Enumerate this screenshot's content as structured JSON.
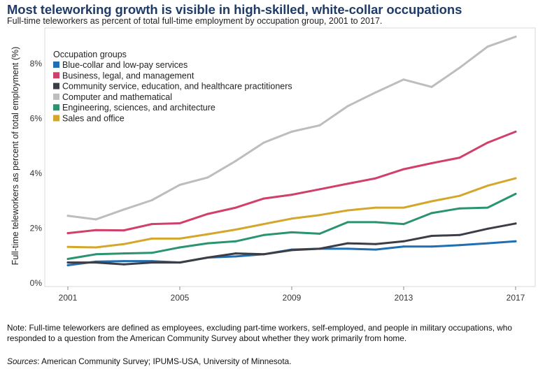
{
  "title": "Most teleworking growth is visible in high-skilled, white-collar occupations",
  "subtitle": "Full-time teleworkers as percent of total full-time employment by occupation group, 2001 to 2017.",
  "note": "Note: Full-time teleworkers are defined as employees, excluding part-time workers, self-employed, and people in military occupations, who responded to a question from the American Community Survey about whether they work primarily from home.",
  "sources_label": "Sources",
  "sources_text": ": American Community Survey; IPUMS-USA, University of Minnesota.",
  "chart_data": {
    "type": "line",
    "title": "Most teleworking growth is visible in high-skilled, white-collar occupations",
    "subtitle": "Full-time teleworkers as percent of total full-time employment by occupation group, 2001 to 2017.",
    "xlabel": "",
    "ylabel": "Full-time teleworkers as percent of total employment (%)",
    "x": [
      2001,
      2002,
      2003,
      2004,
      2005,
      2006,
      2007,
      2008,
      2009,
      2010,
      2011,
      2012,
      2013,
      2014,
      2015,
      2016,
      2017
    ],
    "x_ticks": [
      2001,
      2005,
      2009,
      2013,
      2017
    ],
    "y_ticks": [
      0,
      2,
      4,
      6,
      8
    ],
    "y_tick_labels": [
      "0%",
      "2%",
      "4%",
      "6%",
      "8%"
    ],
    "xlim": [
      2001,
      2017
    ],
    "ylim": [
      0,
      9.3
    ],
    "grid": false,
    "legend_title": "Occupation groups",
    "legend_position": "top-left",
    "series": [
      {
        "name": "Blue-collar and low-pay services",
        "color": "#1f6fb2",
        "values": [
          0.65,
          0.78,
          0.8,
          0.8,
          0.75,
          0.93,
          0.97,
          1.05,
          1.22,
          1.25,
          1.25,
          1.22,
          1.33,
          1.33,
          1.38,
          1.45,
          1.52
        ]
      },
      {
        "name": "Business, legal, and management",
        "color": "#d0406a",
        "values": [
          1.82,
          1.93,
          1.92,
          2.15,
          2.18,
          2.52,
          2.75,
          3.08,
          3.22,
          3.42,
          3.62,
          3.82,
          4.15,
          4.37,
          4.57,
          5.12,
          5.52
        ]
      },
      {
        "name": "Community service, education, and healthcare practitioners",
        "color": "#3d3d46",
        "values": [
          0.75,
          0.75,
          0.68,
          0.75,
          0.75,
          0.93,
          1.08,
          1.05,
          1.2,
          1.25,
          1.45,
          1.42,
          1.52,
          1.72,
          1.75,
          1.98,
          2.17
        ]
      },
      {
        "name": "Computer and mathematical",
        "color": "#bdbdbd",
        "values": [
          2.45,
          2.32,
          2.68,
          3.02,
          3.58,
          3.85,
          4.45,
          5.12,
          5.52,
          5.75,
          6.45,
          6.95,
          7.42,
          7.15,
          7.85,
          8.62,
          8.98
        ]
      },
      {
        "name": "Engineering, sciences, and architecture",
        "color": "#2a9470",
        "values": [
          0.88,
          1.05,
          1.08,
          1.1,
          1.3,
          1.45,
          1.52,
          1.75,
          1.85,
          1.8,
          2.22,
          2.22,
          2.15,
          2.55,
          2.72,
          2.75,
          3.25
        ]
      },
      {
        "name": "Sales and office",
        "color": "#d4a72c",
        "values": [
          1.32,
          1.3,
          1.42,
          1.62,
          1.62,
          1.78,
          1.95,
          2.15,
          2.35,
          2.48,
          2.65,
          2.75,
          2.75,
          2.98,
          3.18,
          3.55,
          3.82
        ]
      }
    ]
  }
}
